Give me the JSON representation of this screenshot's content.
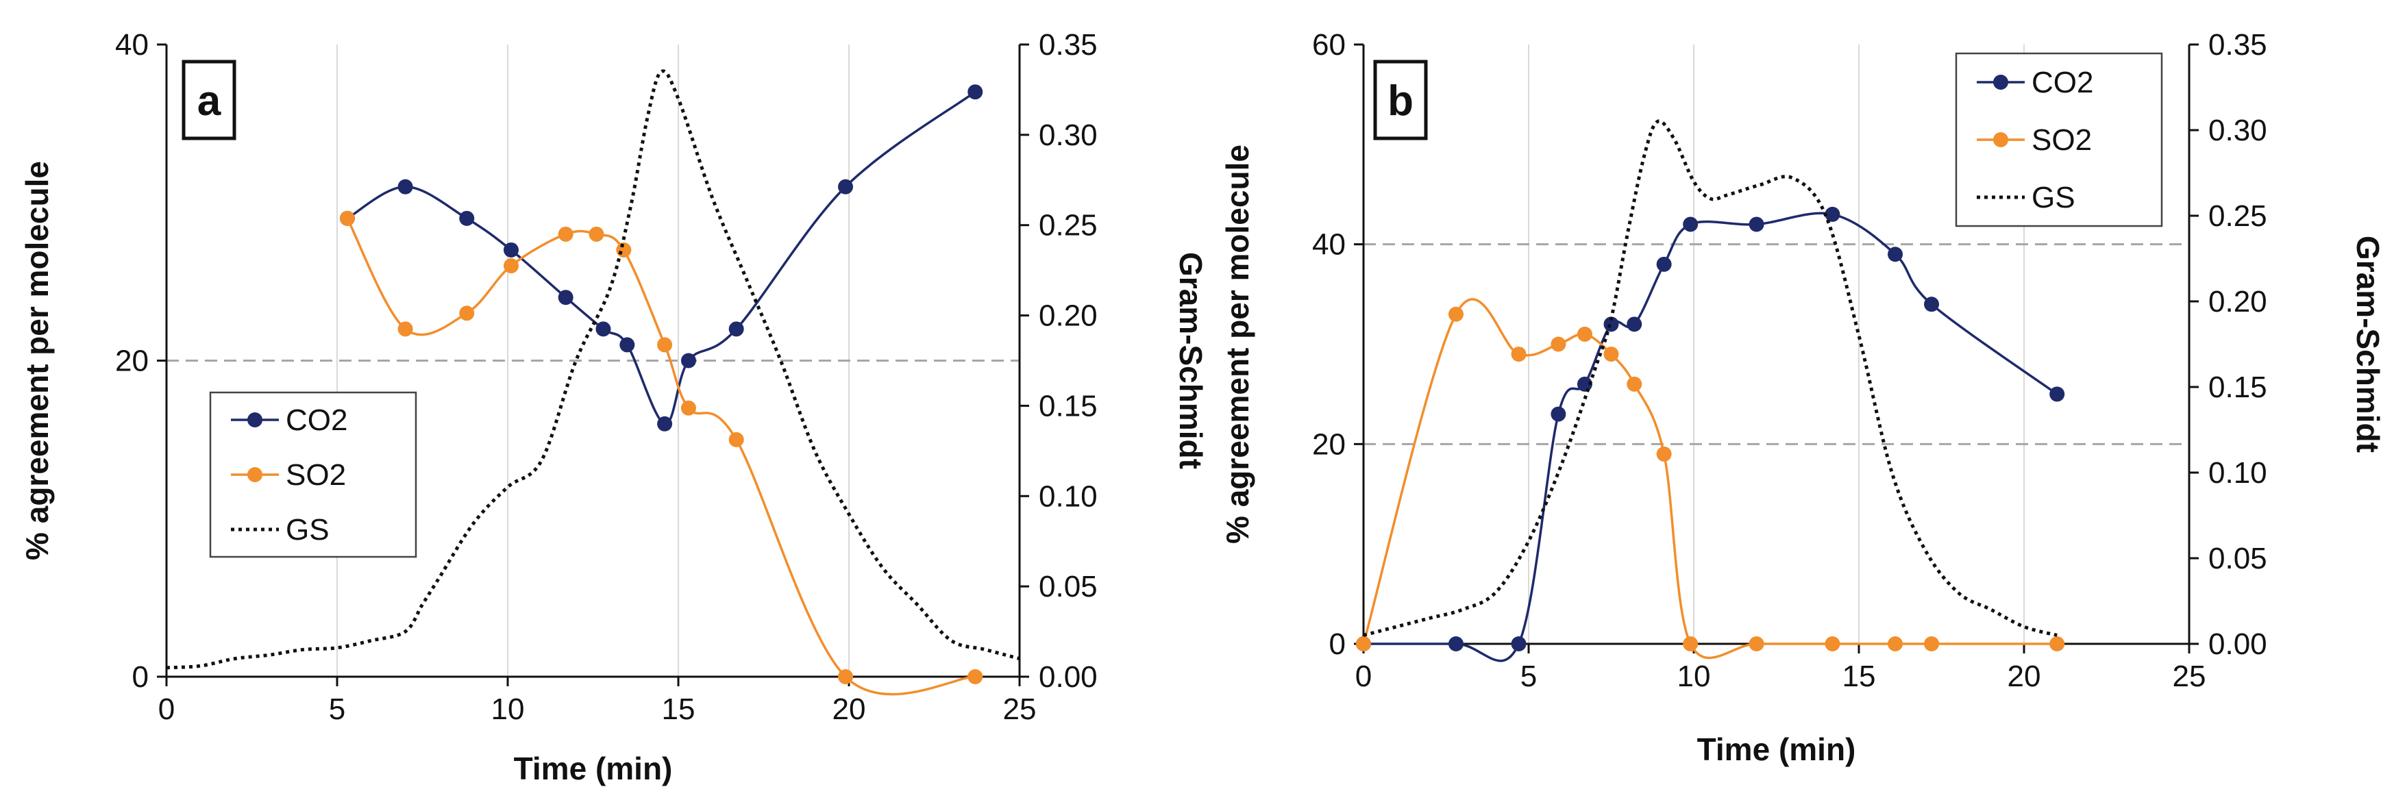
{
  "chart_data": [
    {
      "type": "line",
      "panel_label": "a",
      "xlabel": "Time (min)",
      "ylabel": "% agreement per molecule",
      "y2label": "Gram-Schmidt",
      "xlim": [
        0,
        25
      ],
      "ylim": [
        0,
        40
      ],
      "y2lim": [
        0,
        0.35
      ],
      "xticks": [
        "0",
        "5",
        "10",
        "15",
        "20",
        "25"
      ],
      "yticks": [
        "0",
        "20",
        "40"
      ],
      "y2ticks": [
        "0.00",
        "0.05",
        "0.10",
        "0.15",
        "0.20",
        "0.25",
        "0.30",
        "0.35"
      ],
      "x_gridlines": [
        5,
        10,
        15,
        20
      ],
      "y_gridlines": [
        20
      ],
      "legend_position": "lower-left",
      "series": [
        {
          "name": "CO2",
          "color": "#1f2a6b",
          "style": "line-marker",
          "axis": "left",
          "x": [
            5.3,
            7.0,
            8.8,
            10.1,
            11.7,
            12.8,
            13.5,
            14.6,
            15.3,
            16.7,
            19.9,
            23.7
          ],
          "y": [
            29,
            31,
            29,
            27,
            24,
            22,
            21,
            16,
            20,
            22,
            31,
            37
          ]
        },
        {
          "name": "SO2",
          "color": "#f28e2b",
          "style": "line-marker",
          "axis": "left",
          "x": [
            5.3,
            7.0,
            8.8,
            10.1,
            11.7,
            12.6,
            13.4,
            14.6,
            15.3,
            16.7,
            19.9,
            23.7
          ],
          "y": [
            29,
            22,
            23,
            26,
            28,
            28,
            27,
            21,
            17,
            15,
            0,
            0
          ]
        },
        {
          "name": "GS",
          "color": "#111111",
          "style": "dotted",
          "axis": "right",
          "x": [
            0,
            1,
            2,
            3,
            4,
            5,
            6,
            7,
            7.5,
            8,
            9,
            10,
            11,
            12,
            13,
            13.6,
            14.1,
            14.5,
            15,
            16,
            17,
            18,
            19,
            20,
            21,
            22,
            23,
            24,
            25
          ],
          "y": [
            0.005,
            0.006,
            0.01,
            0.012,
            0.015,
            0.016,
            0.02,
            0.025,
            0.04,
            0.055,
            0.085,
            0.105,
            0.12,
            0.175,
            0.215,
            0.26,
            0.31,
            0.335,
            0.32,
            0.265,
            0.22,
            0.175,
            0.125,
            0.09,
            0.06,
            0.04,
            0.02,
            0.015,
            0.01
          ]
        }
      ]
    },
    {
      "type": "line",
      "panel_label": "b",
      "xlabel": "Time (min)",
      "ylabel": "% agreement per molecule",
      "y2label": "Gram-Schmidt",
      "xlim": [
        0,
        25
      ],
      "ylim": [
        0,
        60
      ],
      "y2lim": [
        0,
        0.35
      ],
      "xticks": [
        "0",
        "5",
        "10",
        "15",
        "20",
        "25"
      ],
      "yticks": [
        "0",
        "20",
        "40",
        "60"
      ],
      "y2ticks": [
        "0.00",
        "0.05",
        "0.10",
        "0.15",
        "0.20",
        "0.25",
        "0.30",
        "0.35"
      ],
      "x_gridlines": [
        5,
        10,
        15,
        20
      ],
      "y_gridlines": [
        20,
        40
      ],
      "legend_position": "top-right",
      "series": [
        {
          "name": "CO2",
          "color": "#1f2a6b",
          "style": "line-marker",
          "axis": "left",
          "x": [
            0,
            2.8,
            4.7,
            5.9,
            6.7,
            7.5,
            8.2,
            9.1,
            9.9,
            11.9,
            14.2,
            16.1,
            17.2,
            21.0
          ],
          "y": [
            0,
            0,
            0,
            23,
            26,
            32,
            32,
            38,
            42,
            42,
            43,
            39,
            34,
            25
          ]
        },
        {
          "name": "SO2",
          "color": "#f28e2b",
          "style": "line-marker",
          "axis": "left",
          "x": [
            0,
            2.8,
            4.7,
            5.9,
            6.7,
            7.5,
            8.2,
            9.1,
            9.9,
            11.9,
            14.2,
            16.1,
            17.2,
            21.0
          ],
          "y": [
            0,
            33,
            29,
            30,
            31,
            29,
            26,
            19,
            0,
            0,
            0,
            0,
            0,
            0
          ]
        },
        {
          "name": "GS",
          "color": "#111111",
          "style": "dotted",
          "axis": "right",
          "x": [
            0,
            1,
            2,
            3,
            4,
            5,
            6,
            7,
            7.5,
            8,
            8.5,
            8.9,
            9.4,
            10,
            10.5,
            11,
            12,
            13,
            14,
            15,
            16,
            17,
            18,
            19,
            20,
            21
          ],
          "y": [
            0.005,
            0.01,
            0.015,
            0.02,
            0.03,
            0.06,
            0.105,
            0.16,
            0.19,
            0.24,
            0.285,
            0.305,
            0.295,
            0.27,
            0.26,
            0.262,
            0.268,
            0.272,
            0.25,
            0.18,
            0.1,
            0.055,
            0.03,
            0.02,
            0.01,
            0.005
          ]
        }
      ]
    }
  ]
}
